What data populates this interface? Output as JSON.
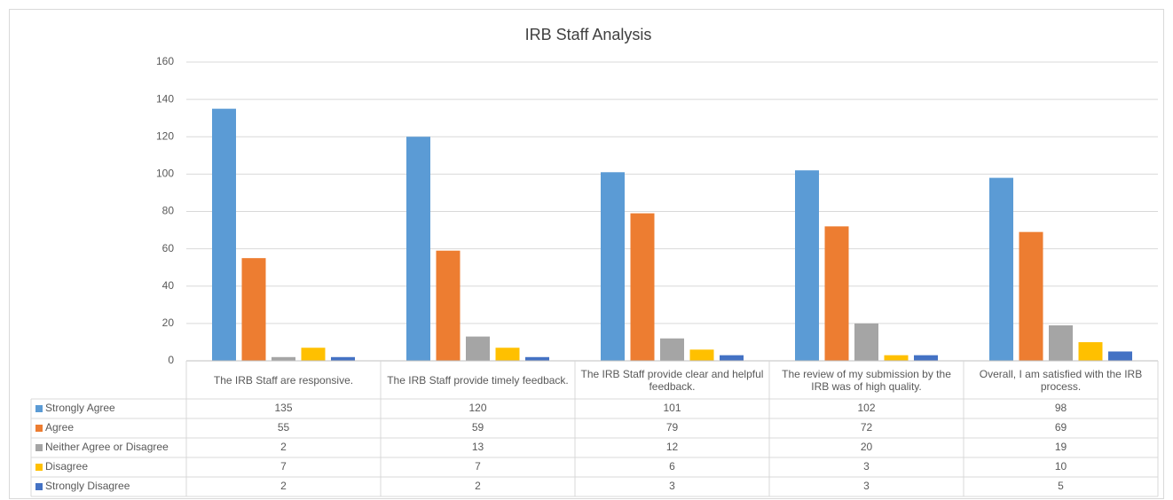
{
  "chart_data": {
    "type": "bar",
    "title": "IRB Staff Analysis",
    "categories": [
      "The IRB Staff are responsive.",
      "The IRB Staff provide timely feedback.",
      "The IRB Staff provide clear and helpful feedback.",
      "The review of my submission by the IRB was of high quality.",
      "Overall, I am satisfied with the IRB process."
    ],
    "series": [
      {
        "name": "Strongly Agree",
        "color": "#5b9bd5",
        "values": [
          135,
          120,
          101,
          102,
          98
        ]
      },
      {
        "name": "Agree",
        "color": "#ed7d31",
        "values": [
          55,
          59,
          79,
          72,
          69
        ]
      },
      {
        "name": "Neither Agree or Disagree",
        "color": "#a5a5a5",
        "values": [
          2,
          13,
          12,
          20,
          19
        ]
      },
      {
        "name": "Disagree",
        "color": "#ffc000",
        "values": [
          7,
          7,
          6,
          3,
          10
        ]
      },
      {
        "name": "Strongly Disagree",
        "color": "#4472c4",
        "values": [
          2,
          2,
          3,
          3,
          5
        ]
      }
    ],
    "ylim": [
      0,
      160
    ],
    "yticks": [
      0,
      20,
      40,
      60,
      80,
      100,
      120,
      140,
      160
    ],
    "grid": true
  }
}
